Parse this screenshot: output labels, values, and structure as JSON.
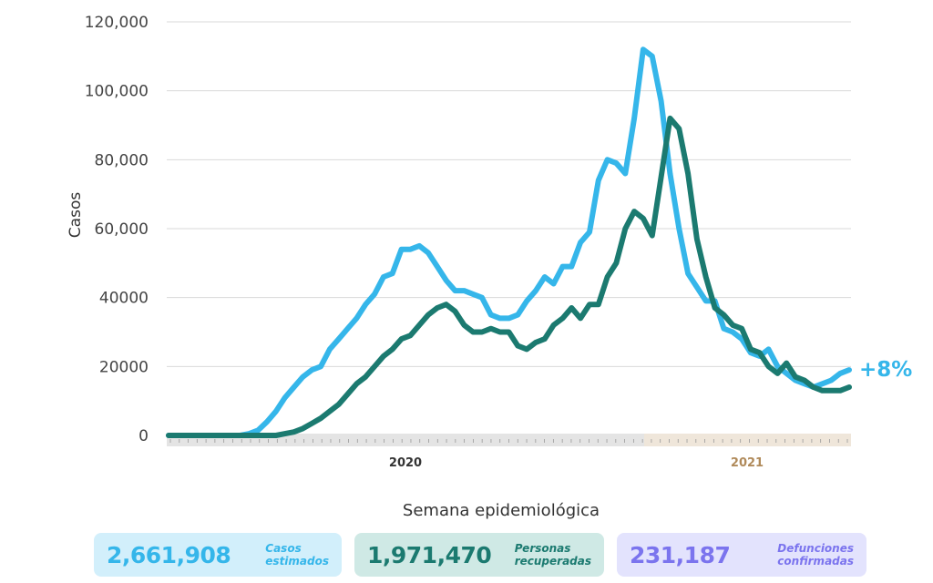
{
  "chart_data": {
    "type": "line",
    "xlabel": "Semana epidemiológica",
    "ylabel": "Casos",
    "ylim": [
      0,
      120000
    ],
    "yticks": [
      "0",
      "20000",
      "40000",
      "60,000",
      "80,000",
      "100,000",
      "120,000"
    ],
    "ytick_values": [
      0,
      20000,
      40000,
      60000,
      80000,
      100000,
      120000
    ],
    "year_labels": [
      "2020",
      "2021"
    ],
    "weeks_2020": 53,
    "weeks_2021": 24,
    "annotation": "+8%",
    "grid": true,
    "series": [
      {
        "name": "Casos estimados",
        "color": "#35b6ea",
        "values": [
          0,
          0,
          0,
          0,
          0,
          0,
          0,
          0,
          0,
          500,
          1500,
          4000,
          7000,
          11000,
          14000,
          17000,
          19000,
          20000,
          25000,
          28000,
          31000,
          34000,
          38000,
          41000,
          46000,
          47000,
          54000,
          54000,
          55000,
          53000,
          49000,
          45000,
          42000,
          42000,
          41000,
          40000,
          35000,
          34000,
          34000,
          35000,
          39000,
          42000,
          46000,
          44000,
          49000,
          49000,
          56000,
          59000,
          74000,
          80000,
          79000,
          76000,
          92000,
          112000,
          110000,
          97000,
          76000,
          60000,
          47000,
          43000,
          39000,
          39000,
          31000,
          30000,
          28000,
          24000,
          23000,
          25000,
          20000,
          18000,
          16000,
          15000,
          14000,
          15000,
          16000,
          18000,
          19000
        ]
      },
      {
        "name": "Personas recuperadas",
        "color": "#1b7a70",
        "values": [
          0,
          0,
          0,
          0,
          0,
          0,
          0,
          0,
          0,
          0,
          0,
          0,
          0,
          500,
          1000,
          2000,
          3500,
          5000,
          7000,
          9000,
          12000,
          15000,
          17000,
          20000,
          23000,
          25000,
          28000,
          29000,
          32000,
          35000,
          37000,
          38000,
          36000,
          32000,
          30000,
          30000,
          31000,
          30000,
          30000,
          26000,
          25000,
          27000,
          28000,
          32000,
          34000,
          37000,
          34000,
          38000,
          38000,
          46000,
          50000,
          60000,
          65000,
          63000,
          58000,
          75000,
          92000,
          89000,
          76000,
          57000,
          46000,
          37000,
          35000,
          32000,
          31000,
          25000,
          24000,
          20000,
          18000,
          21000,
          17000,
          16000,
          14000,
          13000,
          13000,
          13000,
          14000
        ]
      }
    ]
  },
  "cards": [
    {
      "value": "2,661,908",
      "label1": "Casos",
      "label2": "estimados",
      "bg": "#d2effb",
      "fg": "#35b6ea"
    },
    {
      "value": "1,971,470",
      "label1": "Personas",
      "label2": "recuperadas",
      "bg": "#cfe9e5",
      "fg": "#1b7a70"
    },
    {
      "value": "231,187",
      "label1": "Defunciones",
      "label2": "confirmadas",
      "bg": "#e3e3fd",
      "fg": "#7b74ee"
    }
  ]
}
